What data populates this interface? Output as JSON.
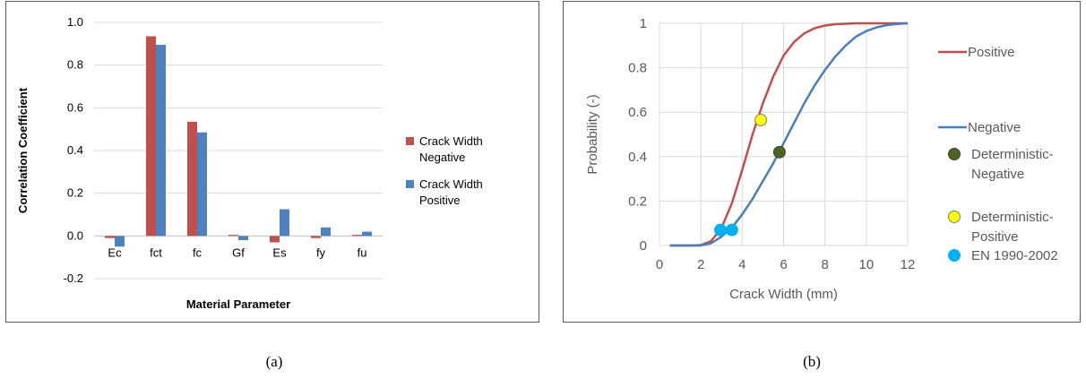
{
  "captions": {
    "a": "(a)",
    "b": "(b)"
  },
  "colors": {
    "red": "#C0504D",
    "blue": "#4F81BD",
    "positive_line": "#C0504D",
    "negative_line": "#4A7EBB",
    "det_negative": "#4F6228",
    "det_positive": "#FFFF00",
    "en": "#00B0F0",
    "grid": "#D9D9D9"
  },
  "chart_data": [
    {
      "type": "bar",
      "title": "",
      "xlabel": "Material Parameter",
      "ylabel": "Correlation Coefficient",
      "ylim": [
        -0.2,
        1.0
      ],
      "yticks": [
        "1.0",
        "0.8",
        "0.6",
        "0.4",
        "0.2",
        "0.0",
        "-0.2"
      ],
      "ytick_values": [
        1.0,
        0.8,
        0.6,
        0.4,
        0.2,
        0.0,
        -0.2
      ],
      "categories": [
        "Ec",
        "fct",
        "fc",
        "Gf",
        "Es",
        "fy",
        "fu"
      ],
      "series": [
        {
          "name": "Crack Width Negative",
          "name_lines": [
            "Crack Width",
            "Negative"
          ],
          "color": "#C0504D",
          "values": [
            -0.01,
            0.935,
            0.535,
            0.005,
            -0.03,
            -0.01,
            0.005
          ]
        },
        {
          "name": "Crack Width Positive",
          "name_lines": [
            "Crack Width",
            "Positive"
          ],
          "color": "#4F81BD",
          "values": [
            -0.05,
            0.895,
            0.485,
            -0.02,
            0.125,
            0.04,
            0.02
          ]
        }
      ],
      "grid": "horizontal",
      "legend": "right"
    },
    {
      "type": "line",
      "title": "",
      "xlabel": "Crack Width (mm)",
      "ylabel": "Probability (-)",
      "xlim": [
        0,
        12
      ],
      "ylim": [
        0,
        1
      ],
      "xticks": [
        "0",
        "2",
        "4",
        "6",
        "8",
        "10",
        "12"
      ],
      "xtick_values": [
        0,
        2,
        4,
        6,
        8,
        10,
        12
      ],
      "yticks": [
        "1",
        "0.8",
        "0.6",
        "0.4",
        "0.2",
        "0"
      ],
      "ytick_values": [
        1,
        0.8,
        0.6,
        0.4,
        0.2,
        0
      ],
      "series": [
        {
          "name": "Positive",
          "color": "#C0504D",
          "x": [
            0.5,
            1.0,
            1.5,
            2.0,
            2.5,
            3.0,
            3.5,
            4.0,
            4.5,
            5.0,
            5.5,
            6.0,
            6.5,
            7.0,
            7.5,
            8.0,
            8.5,
            9.0,
            9.5,
            10.0,
            11.0,
            12.0
          ],
          "y": [
            0.0,
            0.0,
            0.0,
            0.002,
            0.02,
            0.08,
            0.19,
            0.34,
            0.5,
            0.64,
            0.76,
            0.855,
            0.915,
            0.955,
            0.978,
            0.99,
            0.996,
            0.998,
            1.0,
            1.0,
            1.0,
            1.0
          ]
        },
        {
          "name": "Negative",
          "color": "#4A7EBB",
          "x": [
            0.5,
            1.0,
            1.5,
            2.0,
            2.5,
            3.0,
            3.5,
            4.0,
            4.5,
            5.0,
            5.5,
            6.0,
            6.5,
            7.0,
            7.5,
            8.0,
            8.5,
            9.0,
            9.5,
            10.0,
            10.5,
            11.0,
            11.5,
            12.0
          ],
          "y": [
            0.0,
            0.0,
            0.0,
            0.0,
            0.01,
            0.04,
            0.08,
            0.14,
            0.21,
            0.29,
            0.37,
            0.46,
            0.55,
            0.64,
            0.72,
            0.79,
            0.85,
            0.9,
            0.94,
            0.965,
            0.982,
            0.992,
            0.997,
            1.0
          ]
        }
      ],
      "points": [
        {
          "name": "Deterministic-Negative",
          "name_lines": [
            "Deterministic-",
            "Negative"
          ],
          "color": "#4F6228",
          "stroke": "#3A4A1C",
          "x": [
            5.8
          ],
          "y": [
            0.42
          ]
        },
        {
          "name": "Deterministic-Positive",
          "name_lines": [
            "Deterministic-",
            "Positive"
          ],
          "color": "#FFFF00",
          "stroke": "#7F7F7F",
          "x": [
            4.9
          ],
          "y": [
            0.565
          ]
        },
        {
          "name": "EN 1990-2002",
          "name_lines": [
            "EN 1990-2002"
          ],
          "color": "#00B0F0",
          "stroke": "#00B0F0",
          "x": [
            2.95,
            3.5
          ],
          "y": [
            0.07,
            0.07
          ]
        }
      ],
      "grid": "both",
      "legend": "right"
    }
  ]
}
